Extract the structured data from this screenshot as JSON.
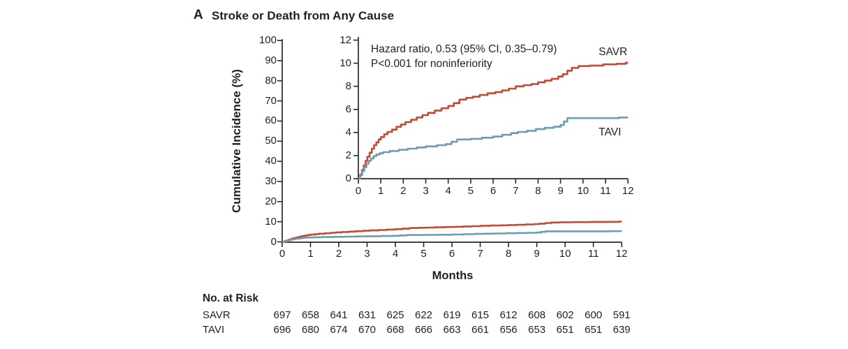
{
  "chart_data": {
    "type": "line",
    "panel_letter": "A",
    "title": "Stroke or Death from Any Cause",
    "ylabel": "Cumulative Incidence (%)",
    "xlabel": "Months",
    "annotation_line1": "Hazard ratio, 0.53 (95% CI, 0.35–0.79)",
    "annotation_line2": "P<0.001 for noninferiority",
    "x_ticks": [
      0,
      1,
      2,
      3,
      4,
      5,
      6,
      7,
      8,
      9,
      10,
      11,
      12
    ],
    "main_axis": {
      "xlim": [
        0,
        12
      ],
      "ylim": [
        0,
        100
      ],
      "y_ticks": [
        0,
        10,
        20,
        30,
        40,
        50,
        60,
        70,
        80,
        90,
        100
      ],
      "grid": false
    },
    "inset_axis": {
      "xlim": [
        0,
        12
      ],
      "ylim": [
        0,
        12
      ],
      "y_ticks": [
        0,
        2,
        4,
        6,
        8,
        10,
        12
      ],
      "grid": false
    },
    "axis_color": "#2b2728",
    "series": [
      {
        "name": "SAVR",
        "color": "#C14B32",
        "points": [
          [
            0,
            0
          ],
          [
            0.08,
            0.35
          ],
          [
            0.16,
            0.75
          ],
          [
            0.24,
            1.15
          ],
          [
            0.32,
            1.55
          ],
          [
            0.4,
            1.9
          ],
          [
            0.5,
            2.25
          ],
          [
            0.6,
            2.6
          ],
          [
            0.7,
            2.9
          ],
          [
            0.8,
            3.15
          ],
          [
            0.9,
            3.4
          ],
          [
            1.0,
            3.6
          ],
          [
            1.15,
            3.85
          ],
          [
            1.3,
            4.05
          ],
          [
            1.5,
            4.25
          ],
          [
            1.7,
            4.5
          ],
          [
            1.9,
            4.7
          ],
          [
            2.1,
            4.9
          ],
          [
            2.35,
            5.1
          ],
          [
            2.6,
            5.3
          ],
          [
            2.85,
            5.5
          ],
          [
            3.1,
            5.7
          ],
          [
            3.4,
            5.9
          ],
          [
            3.7,
            6.1
          ],
          [
            4.0,
            6.3
          ],
          [
            4.25,
            6.55
          ],
          [
            4.5,
            6.85
          ],
          [
            4.8,
            7.0
          ],
          [
            5.1,
            7.1
          ],
          [
            5.4,
            7.25
          ],
          [
            5.75,
            7.4
          ],
          [
            6.1,
            7.5
          ],
          [
            6.4,
            7.65
          ],
          [
            6.7,
            7.8
          ],
          [
            7.0,
            8.0
          ],
          [
            7.35,
            8.1
          ],
          [
            7.7,
            8.2
          ],
          [
            8.0,
            8.35
          ],
          [
            8.3,
            8.5
          ],
          [
            8.6,
            8.65
          ],
          [
            8.9,
            8.85
          ],
          [
            9.1,
            9.05
          ],
          [
            9.3,
            9.35
          ],
          [
            9.5,
            9.6
          ],
          [
            9.8,
            9.75
          ],
          [
            10.3,
            9.8
          ],
          [
            10.9,
            9.9
          ],
          [
            11.5,
            9.95
          ],
          [
            11.9,
            10.05
          ],
          [
            12,
            10.05
          ]
        ]
      },
      {
        "name": "TAVI",
        "color": "#6E9BAD",
        "points": [
          [
            0,
            0
          ],
          [
            0.08,
            0.3
          ],
          [
            0.17,
            0.65
          ],
          [
            0.26,
            1.0
          ],
          [
            0.36,
            1.3
          ],
          [
            0.46,
            1.55
          ],
          [
            0.56,
            1.75
          ],
          [
            0.68,
            1.95
          ],
          [
            0.8,
            2.1
          ],
          [
            0.95,
            2.2
          ],
          [
            1.1,
            2.3
          ],
          [
            1.4,
            2.4
          ],
          [
            1.8,
            2.5
          ],
          [
            2.2,
            2.6
          ],
          [
            2.6,
            2.7
          ],
          [
            3.0,
            2.8
          ],
          [
            3.5,
            2.9
          ],
          [
            3.9,
            3.0
          ],
          [
            4.15,
            3.2
          ],
          [
            4.4,
            3.4
          ],
          [
            5.0,
            3.45
          ],
          [
            5.5,
            3.55
          ],
          [
            6.0,
            3.65
          ],
          [
            6.4,
            3.8
          ],
          [
            6.8,
            3.95
          ],
          [
            7.1,
            4.05
          ],
          [
            7.5,
            4.15
          ],
          [
            7.9,
            4.3
          ],
          [
            8.3,
            4.4
          ],
          [
            8.7,
            4.5
          ],
          [
            9.0,
            4.65
          ],
          [
            9.15,
            4.95
          ],
          [
            9.3,
            5.25
          ],
          [
            10.0,
            5.25
          ],
          [
            11.0,
            5.25
          ],
          [
            11.6,
            5.3
          ],
          [
            12,
            5.3
          ]
        ]
      }
    ],
    "risk_table": {
      "title": "No. at Risk",
      "time_points": [
        0,
        1,
        2,
        3,
        4,
        5,
        6,
        7,
        8,
        9,
        10,
        11,
        12
      ],
      "rows": [
        {
          "label": "SAVR",
          "counts": [
            697,
            658,
            641,
            631,
            625,
            622,
            619,
            615,
            612,
            608,
            602,
            600,
            591
          ]
        },
        {
          "label": "TAVI",
          "counts": [
            696,
            680,
            674,
            670,
            668,
            666,
            663,
            661,
            656,
            653,
            651,
            651,
            639
          ]
        }
      ]
    }
  }
}
